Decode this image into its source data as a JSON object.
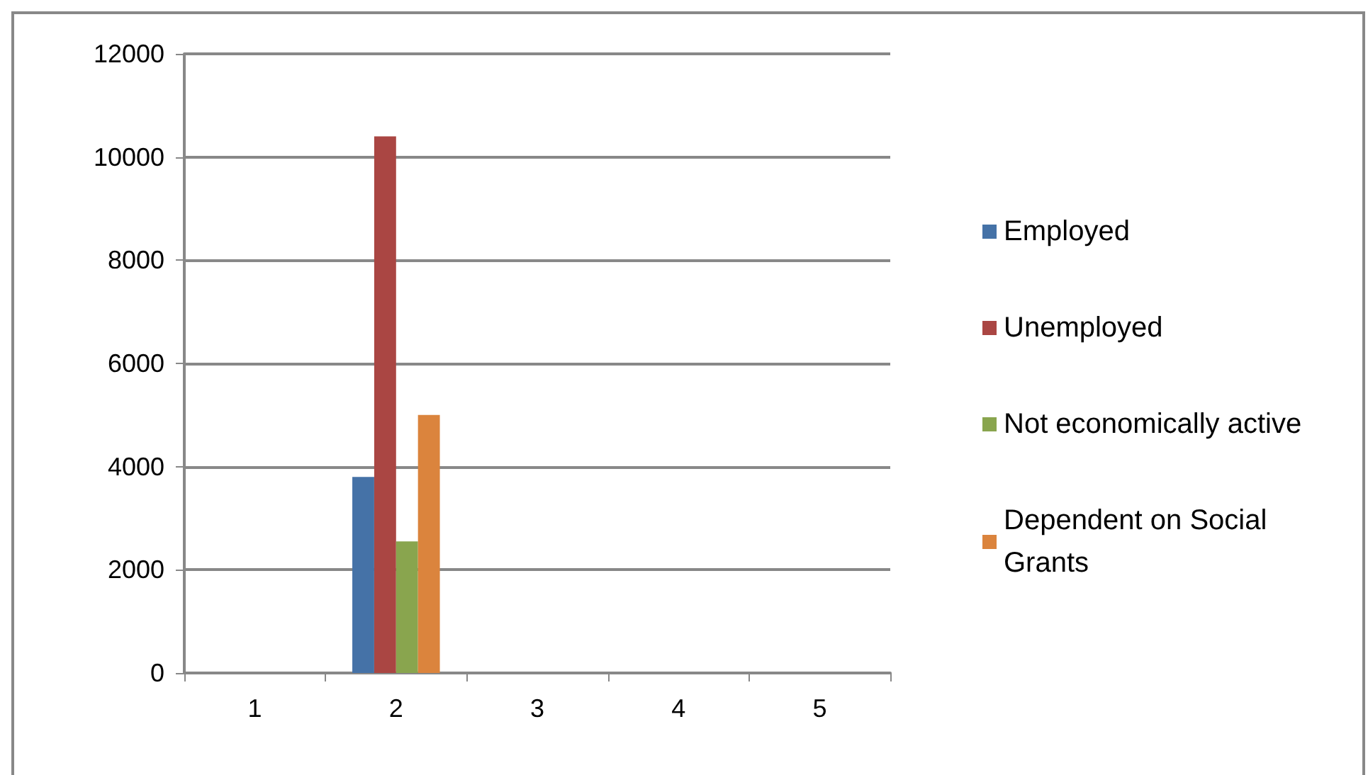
{
  "chart_data": {
    "type": "bar",
    "categories": [
      "1",
      "2",
      "3",
      "4",
      "5"
    ],
    "series": [
      {
        "name": "Employed",
        "color": "#4572a7",
        "values": [
          null,
          3800,
          null,
          null,
          null
        ]
      },
      {
        "name": "Unemployed",
        "color": "#aa4643",
        "values": [
          null,
          10400,
          null,
          null,
          null
        ]
      },
      {
        "name": "Not economically active",
        "color": "#89a54e",
        "values": [
          null,
          2550,
          null,
          null,
          null
        ]
      },
      {
        "name": "Dependent on Social Grants",
        "color": "#db843d",
        "values": [
          null,
          5000,
          null,
          null,
          null
        ]
      }
    ],
    "ylim": [
      0,
      12000
    ],
    "yticks": [
      0,
      2000,
      4000,
      6000,
      8000,
      10000,
      12000
    ],
    "grid": "y",
    "legend": "right"
  }
}
